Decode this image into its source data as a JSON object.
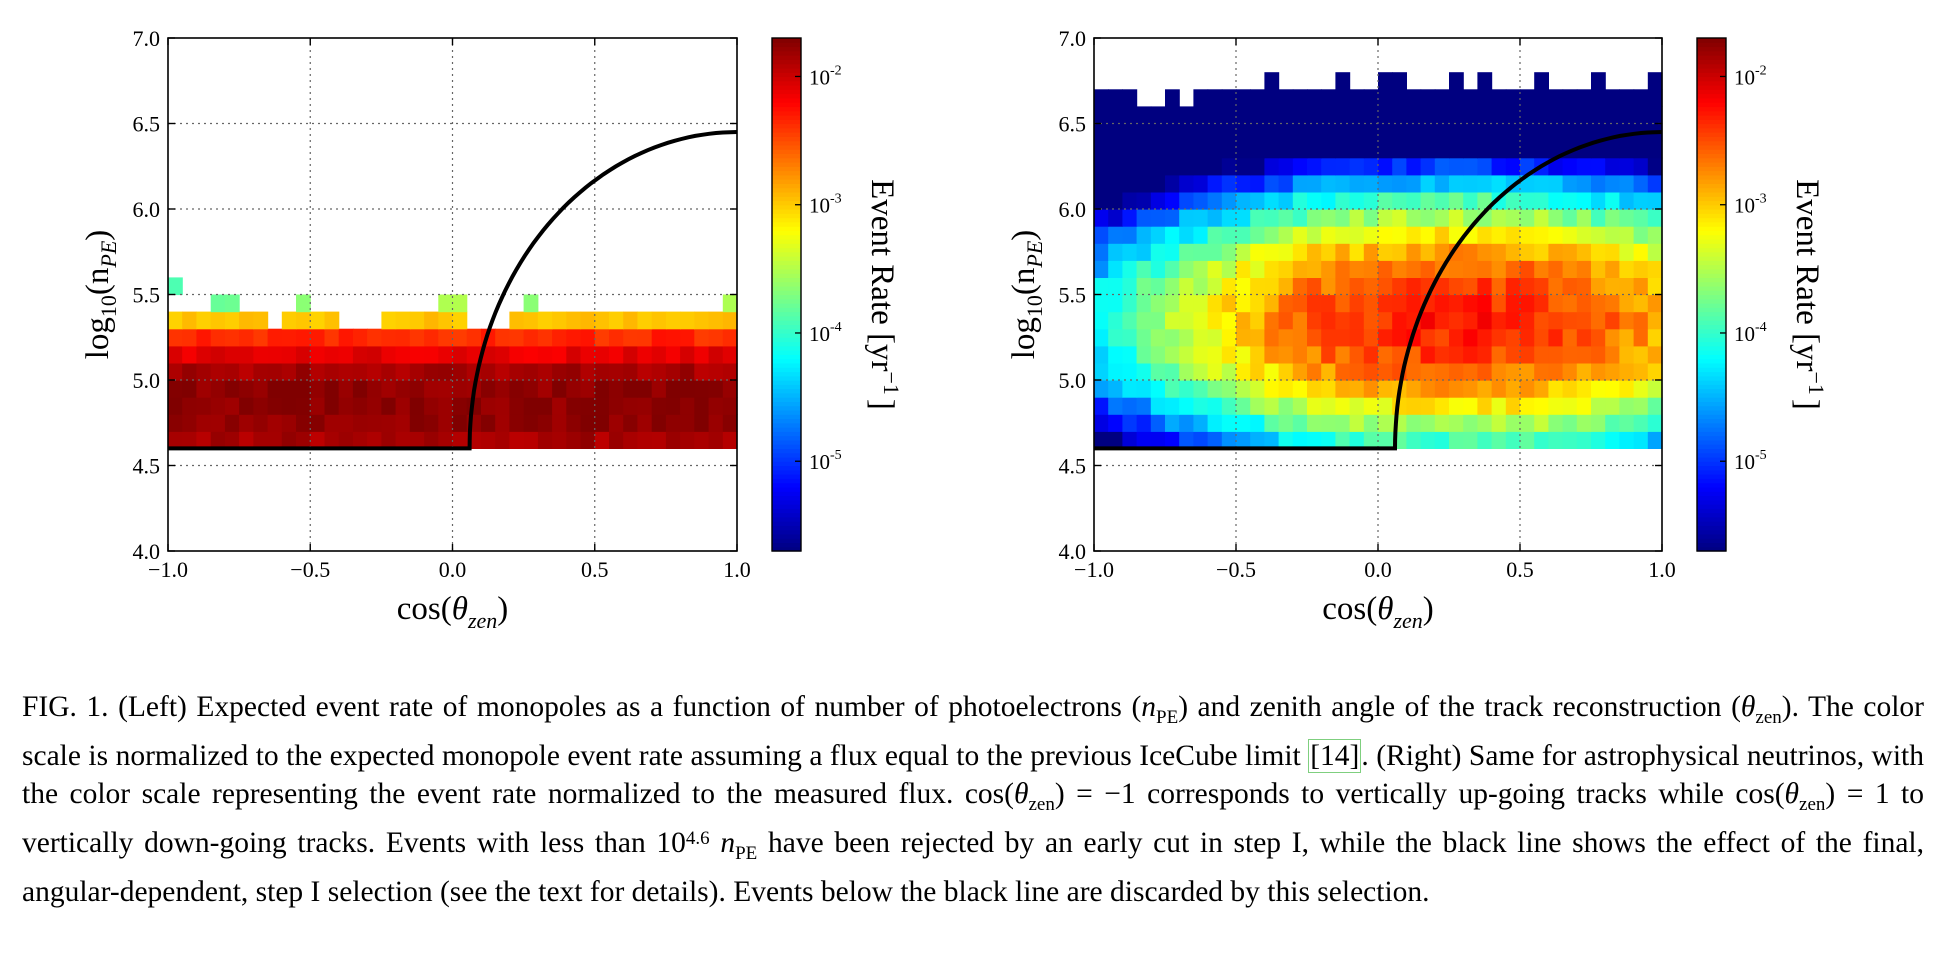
{
  "figure": {
    "colorbar": {
      "label": "Event Rate  [yr",
      "label_exp": "−1",
      "label_close": "]",
      "ticks": [
        {
          "exp": "-2",
          "value": 0.01
        },
        {
          "exp": "-3",
          "value": 0.001
        },
        {
          "exp": "-4",
          "value": 0.0001
        },
        {
          "exp": "-5",
          "value": 1e-05
        }
      ],
      "log_range": [
        -5.7,
        -1.7
      ]
    },
    "xlabel": "cos(",
    "xlabel_theta": "θ",
    "xlabel_sub": "zen",
    "xlabel_close": ")",
    "ylabel": "log",
    "ylabel_sub10": "10",
    "ylabel_n": "(n",
    "ylabel_sub": "PE",
    "ylabel_close": ")"
  },
  "chart_data": [
    {
      "type": "heatmap",
      "panel": "left",
      "title": "Monopoles",
      "xlim": [
        -1.0,
        1.0
      ],
      "ylim": [
        4.0,
        7.0
      ],
      "xticks": [
        "−1.0",
        "−0.5",
        "0.0",
        "0.5",
        "1.0"
      ],
      "yticks": [
        "4.0",
        "4.5",
        "5.0",
        "5.5",
        "6.0",
        "6.5",
        "7.0"
      ],
      "grid": true,
      "x_bins": 40,
      "y_bin_width": 0.1,
      "rows": [
        {
          "y": 4.6,
          "log_rate": -1.85
        },
        {
          "y": 4.7,
          "log_rate": -1.75
        },
        {
          "y": 4.8,
          "log_rate": -1.75
        },
        {
          "y": 4.9,
          "log_rate": -1.75
        },
        {
          "y": 5.0,
          "log_rate": -1.85
        },
        {
          "y": 5.1,
          "log_rate": -2.1
        },
        {
          "y": 5.2,
          "log_rate": -2.35
        },
        {
          "y": 5.3,
          "log_rate": -3.0
        },
        {
          "y": 5.5,
          "log_rate": -3.9
        }
      ],
      "cut_line": {
        "flat_log_npe": 4.6,
        "x_start": 0.06,
        "x_end": 1.0,
        "y_end": 6.45
      }
    },
    {
      "type": "heatmap",
      "panel": "right",
      "title": "Astrophysical neutrinos",
      "xlim": [
        -1.0,
        1.0
      ],
      "ylim": [
        4.0,
        7.0
      ],
      "xticks": [
        "−1.0",
        "−0.5",
        "0.0",
        "0.5",
        "1.0"
      ],
      "yticks": [
        "4.0",
        "4.5",
        "5.0",
        "5.5",
        "6.0",
        "6.5",
        "7.0"
      ],
      "grid": true,
      "x_bins": 40,
      "y_bin_width": 0.1,
      "y_range_filled": [
        4.6,
        6.8
      ],
      "peak": {
        "x": 0.25,
        "y": 5.35,
        "log_rate": -2.3
      },
      "cut_line": {
        "flat_log_npe": 4.6,
        "x_start": 0.06,
        "x_end": 1.0,
        "y_end": 6.45
      }
    }
  ],
  "caption": {
    "p1": "FIG. 1. (Left) Expected event rate of monopoles as a function of number of photoelectrons (",
    "n": "n",
    "pe": "PE",
    "p2": ") and zenith angle of the track reconstruction (",
    "theta": "θ",
    "zen": "zen",
    "p3": "). The color scale is normalized to the expected monopole event rate assuming a flux equal to the previous IceCube limit ",
    "ref": "[14]",
    "p4": ". (Right) Same for astrophysical neutrinos, with the color scale representing the event rate normalized to the measured flux. ",
    "cos1": "cos(",
    "theta1": "θ",
    "zen1": "zen",
    "eq1": ") = −1 corresponds to vertically up-going tracks while ",
    "cos2": "cos(",
    "theta2": "θ",
    "zen2": "zen",
    "eq2": ") = 1 to vertically down-going tracks. Events with less than 10",
    "exp": "4.6",
    "n2": " n",
    "pe2": "PE",
    "p5": " have been rejected by an early cut in step I, while the black line shows the effect of the final, angular-dependent, step I selection (see the text for details). Events below the black line are discarded by this selection."
  }
}
